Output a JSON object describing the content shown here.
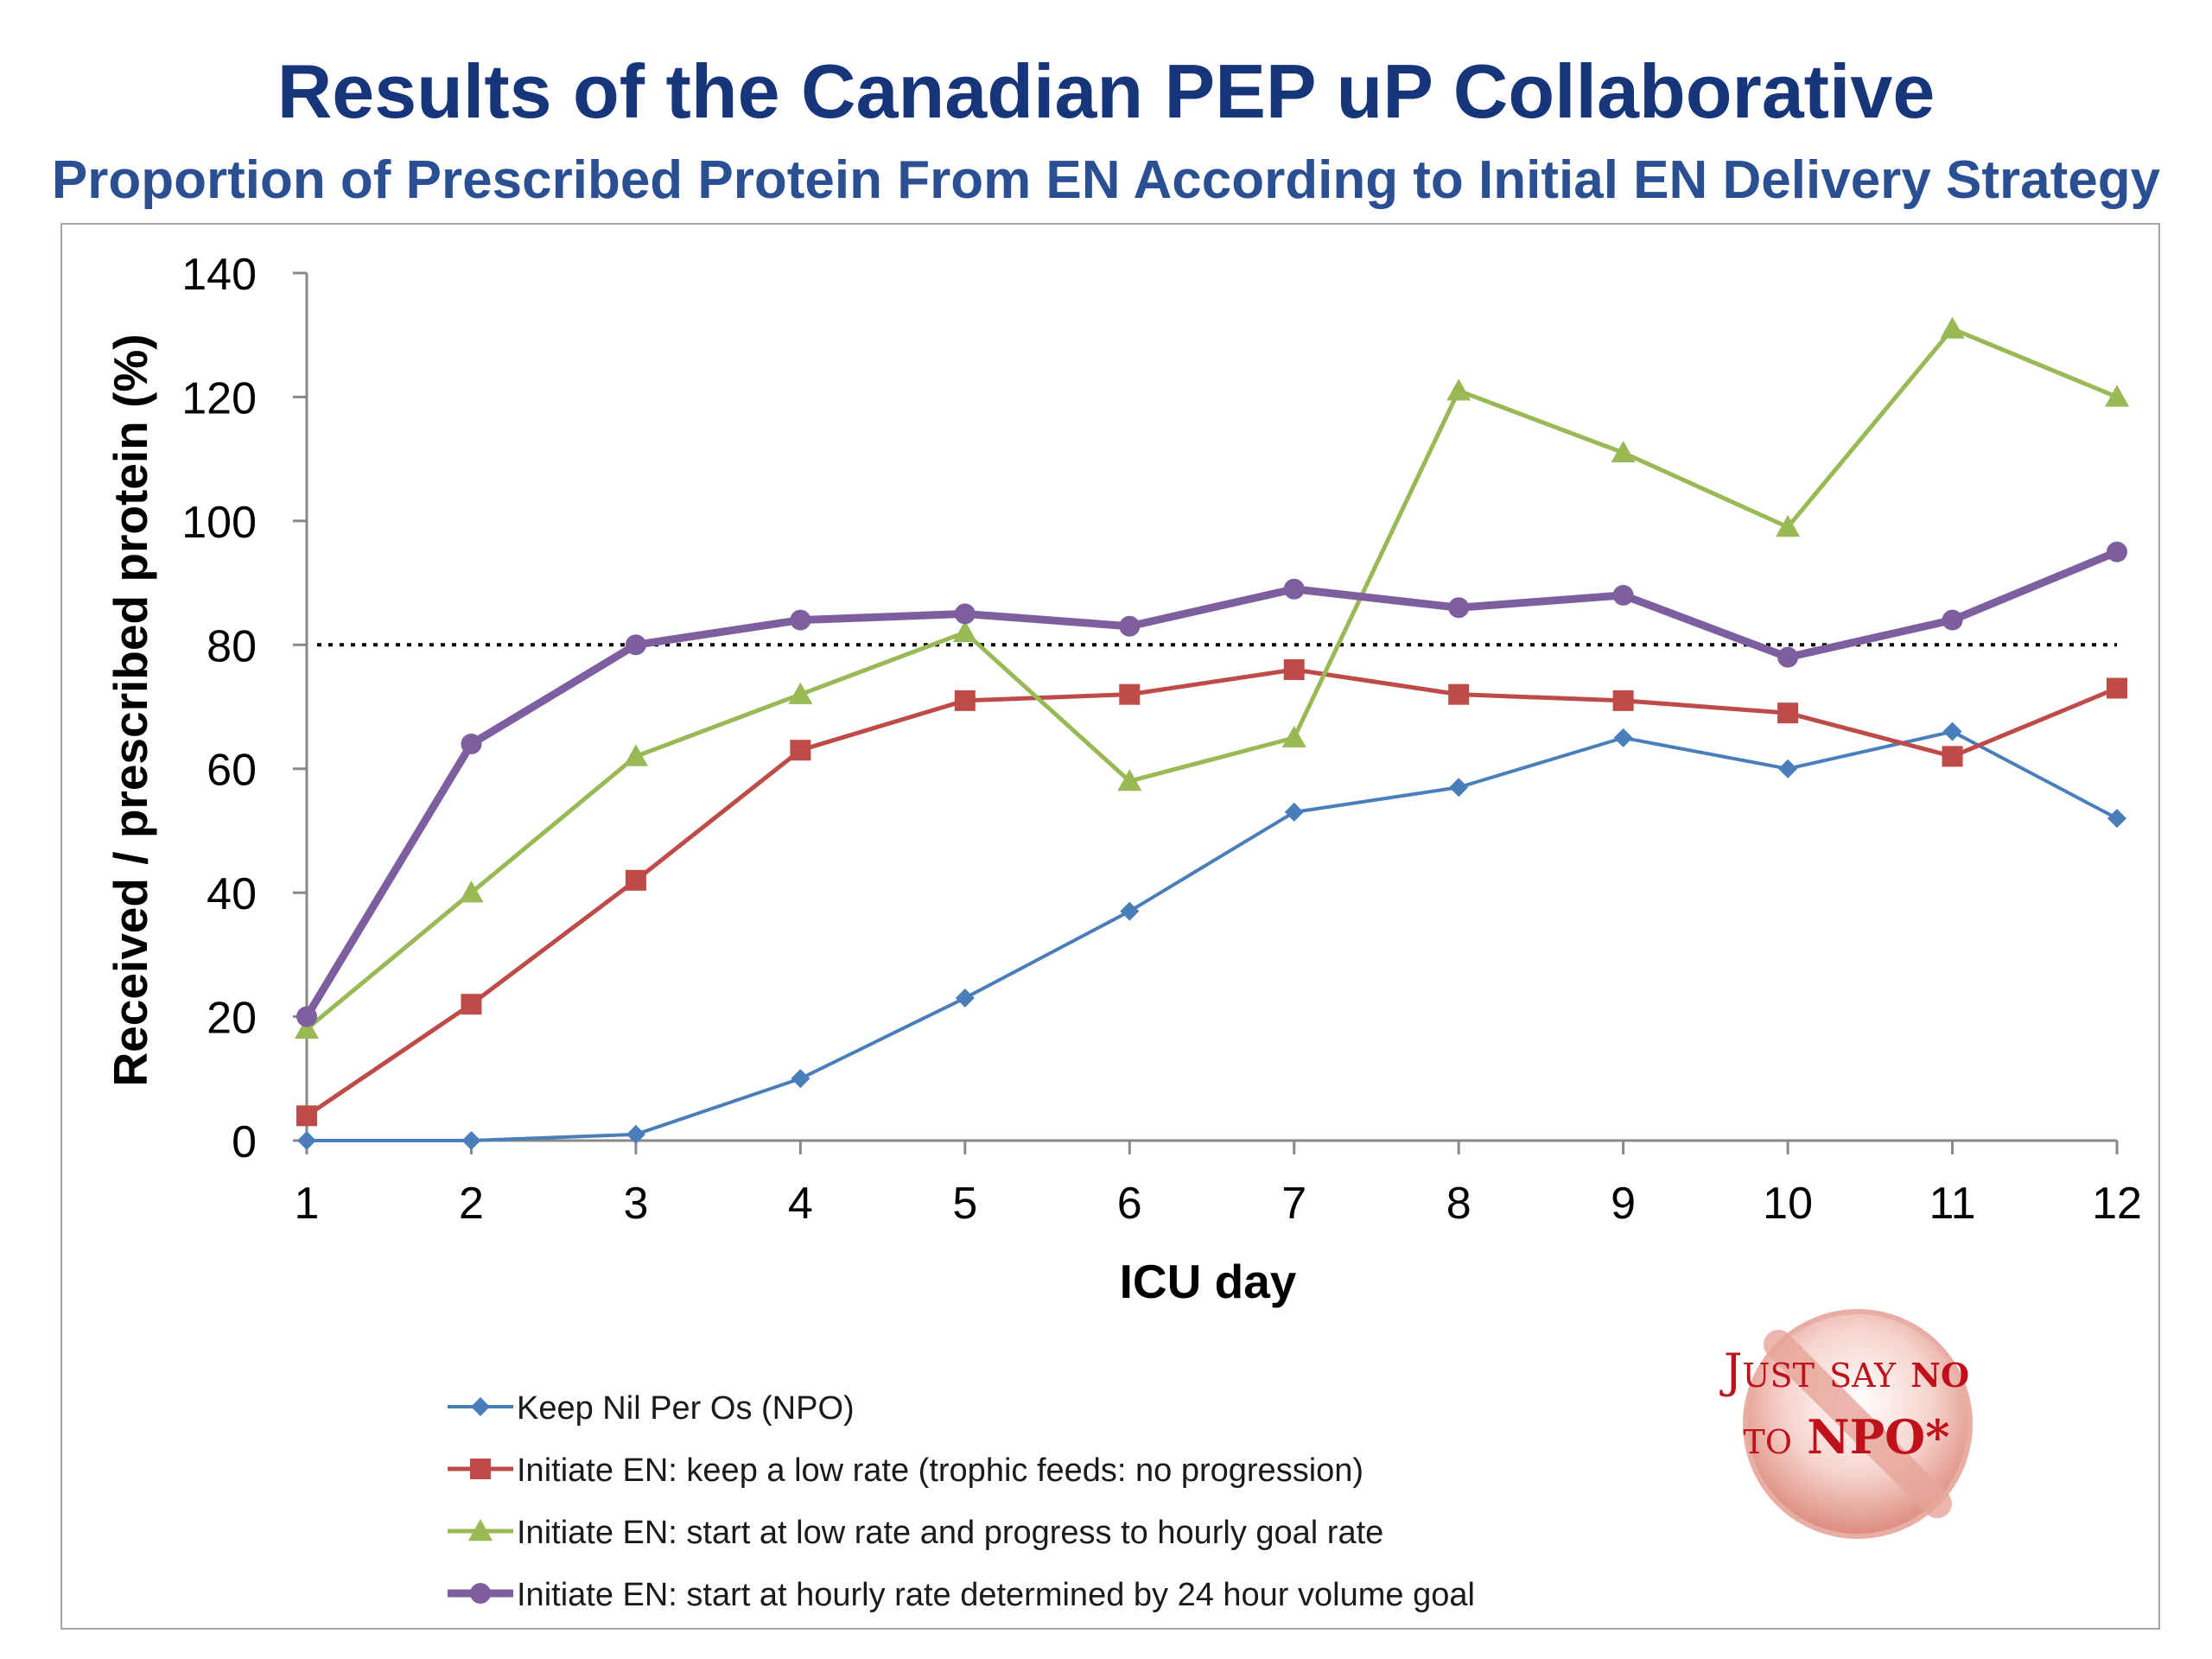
{
  "page": {
    "title": "Results of the Canadian PEP uP Collaborative",
    "subtitle": "Proportion of Prescribed Protein From EN According to Initial EN Delivery Strategy"
  },
  "stamp": {
    "line1_a": "Just say ",
    "line1_b": "no",
    "line2_a": "to ",
    "line2_b": "NPO*"
  },
  "colors": {
    "title": "#16357a",
    "subtitle": "#2a4f93",
    "npo": "#4a7ebb",
    "low_rate": "#be4b48",
    "progress": "#98b954",
    "hourly": "#7d5fa0",
    "stamp_red": "#c0101a"
  },
  "chart_data": {
    "type": "line",
    "xlabel": "ICU day",
    "ylabel": "Received / prescribed protein (%)",
    "x": [
      1,
      2,
      3,
      4,
      5,
      6,
      7,
      8,
      9,
      10,
      11,
      12
    ],
    "ylim": [
      0,
      140
    ],
    "yticks": [
      0,
      20,
      40,
      60,
      80,
      100,
      120,
      140
    ],
    "reference_line": 80,
    "grid": false,
    "legend_position": "bottom-left",
    "series": [
      {
        "name": "Keep Nil Per Os (NPO)",
        "marker": "diamond",
        "color": "#4a7ebb",
        "values": [
          0,
          0,
          1,
          10,
          23,
          37,
          53,
          57,
          65,
          60,
          66,
          52
        ]
      },
      {
        "name": "Initiate EN: keep a low rate (trophic feeds: no progression)",
        "marker": "square",
        "color": "#be4b48",
        "values": [
          4,
          22,
          42,
          63,
          71,
          72,
          76,
          72,
          71,
          69,
          62,
          73
        ]
      },
      {
        "name": "Initiate EN: start at low rate and progress to hourly goal rate",
        "marker": "triangle",
        "color": "#98b954",
        "values": [
          18,
          40,
          62,
          72,
          82,
          58,
          65,
          121,
          111,
          99,
          131,
          120
        ]
      },
      {
        "name": "Initiate EN: start at hourly rate determined by 24 hour volume goal",
        "marker": "circle",
        "color": "#7d5fa0",
        "values": [
          20,
          64,
          80,
          84,
          85,
          83,
          89,
          86,
          88,
          78,
          84,
          95
        ]
      }
    ]
  }
}
